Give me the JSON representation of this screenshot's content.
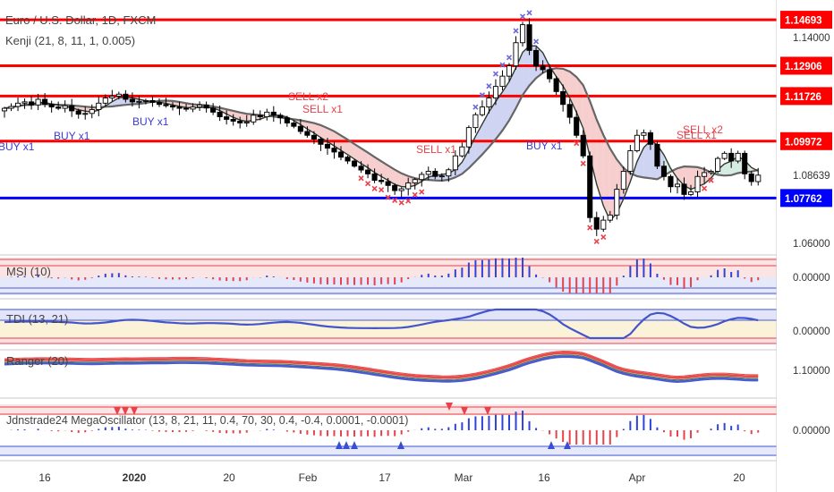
{
  "header": {
    "symbol_title": "Euro / U.S. Dollar, 1D, FXCM",
    "indicator_title": "Kenji (21, 8, 11, 1, 0.005)"
  },
  "colors": {
    "bull_candle": "#ffffff",
    "bear_candle": "#000000",
    "resistance_line": "#ff0000",
    "support_line": "#0000ff",
    "cloud_red": "#f4c6c6",
    "cloud_blue": "#c6ccf0",
    "cloud_green": "#cfe8dc",
    "buy_text": "#3b3bd6",
    "sell_text": "#e8414a",
    "msi_up": "#2f44d8",
    "msi_down": "#e8414a",
    "tdi_line": "#4455cc",
    "ranger_red": "#e84a4a",
    "ranger_blue": "#4a5ad0"
  },
  "chart_data": [
    {
      "type": "candlestick",
      "title": "Euro / U.S. Dollar, 1D, FXCM",
      "subtitle": "Kenji (21, 8, 11, 1, 0.005)",
      "x_tick_labels": [
        "16",
        "2020",
        "20",
        "Feb",
        "17",
        "Mar",
        "16",
        "Apr",
        "20"
      ],
      "y_tick_labels": [
        "1.14000",
        "1.08639",
        "1.06000"
      ],
      "ylim": [
        1.052,
        1.152
      ],
      "horizontal_levels": [
        {
          "value": 1.14693,
          "label": "1.14693",
          "color": "#ff0000"
        },
        {
          "value": 1.12906,
          "label": "1.12906",
          "color": "#ff0000"
        },
        {
          "value": 1.11726,
          "label": "1.11726",
          "color": "#ff0000"
        },
        {
          "value": 1.09972,
          "label": "1.09972",
          "color": "#ff0000"
        },
        {
          "value": 1.07762,
          "label": "1.07762",
          "color": "#0000ff"
        }
      ],
      "close": [
        1.1125,
        1.1132,
        1.1145,
        1.115,
        1.1138,
        1.116,
        1.114,
        1.113,
        1.1125,
        1.1135,
        1.1115,
        1.1102,
        1.1105,
        1.112,
        1.1145,
        1.1165,
        1.1172,
        1.118,
        1.116,
        1.115,
        1.1152,
        1.1155,
        1.1148,
        1.114,
        1.1135,
        1.113,
        1.1125,
        1.1122,
        1.113,
        1.1138,
        1.1126,
        1.111,
        1.1092,
        1.1082,
        1.1075,
        1.1068,
        1.1072,
        1.1098,
        1.1092,
        1.111,
        1.1098,
        1.1088,
        1.1068,
        1.1055,
        1.1035,
        1.102,
        1.1005,
        1.0985,
        1.097,
        1.0955,
        1.0935,
        1.092,
        1.09,
        1.0885,
        1.087,
        1.0845,
        1.084,
        1.0825,
        1.0805,
        1.0812,
        1.0835,
        1.0848,
        1.0868,
        1.088,
        1.086,
        1.0862,
        1.0886,
        1.094,
        1.0975,
        1.105,
        1.11,
        1.113,
        1.1165,
        1.121,
        1.125,
        1.129,
        1.138,
        1.145,
        1.135,
        1.129,
        1.1275,
        1.124,
        1.119,
        1.114,
        1.109,
        1.102,
        1.094,
        1.07,
        1.0655,
        1.069,
        1.071,
        1.081,
        1.088,
        1.096,
        1.102,
        1.103,
        1.0985,
        1.09,
        1.086,
        1.082,
        1.083,
        1.079,
        1.08,
        1.086,
        1.0875,
        1.088,
        1.093,
        1.095,
        1.092,
        1.095,
        1.087,
        1.084,
        1.0865
      ]
    },
    {
      "type": "bar",
      "title": "MSI (10)",
      "y_tick_labels": [
        "0.00000"
      ]
    },
    {
      "type": "line",
      "title": "TDI (13, 21)",
      "y_tick_labels": [
        "0.00000"
      ]
    },
    {
      "type": "line",
      "title": "Ranger (20)",
      "y_tick_labels": [
        "1.10000"
      ]
    },
    {
      "type": "bar",
      "title": "Jdnstrade24 MegaOscillator (13, 8, 21, 11, 0.4, 70, 30, 0.4, -0.4, 0.0001, -0.0001)",
      "y_tick_labels": [
        "0.00000"
      ]
    }
  ],
  "signals": {
    "buy_labels": [
      "BUY x1",
      "BUY x1",
      "BUY x1",
      "BUY x1"
    ],
    "sell_labels": [
      "SELL x2",
      "SELL x1",
      "SELL x1",
      "SELL x1",
      "SELL x2"
    ]
  }
}
